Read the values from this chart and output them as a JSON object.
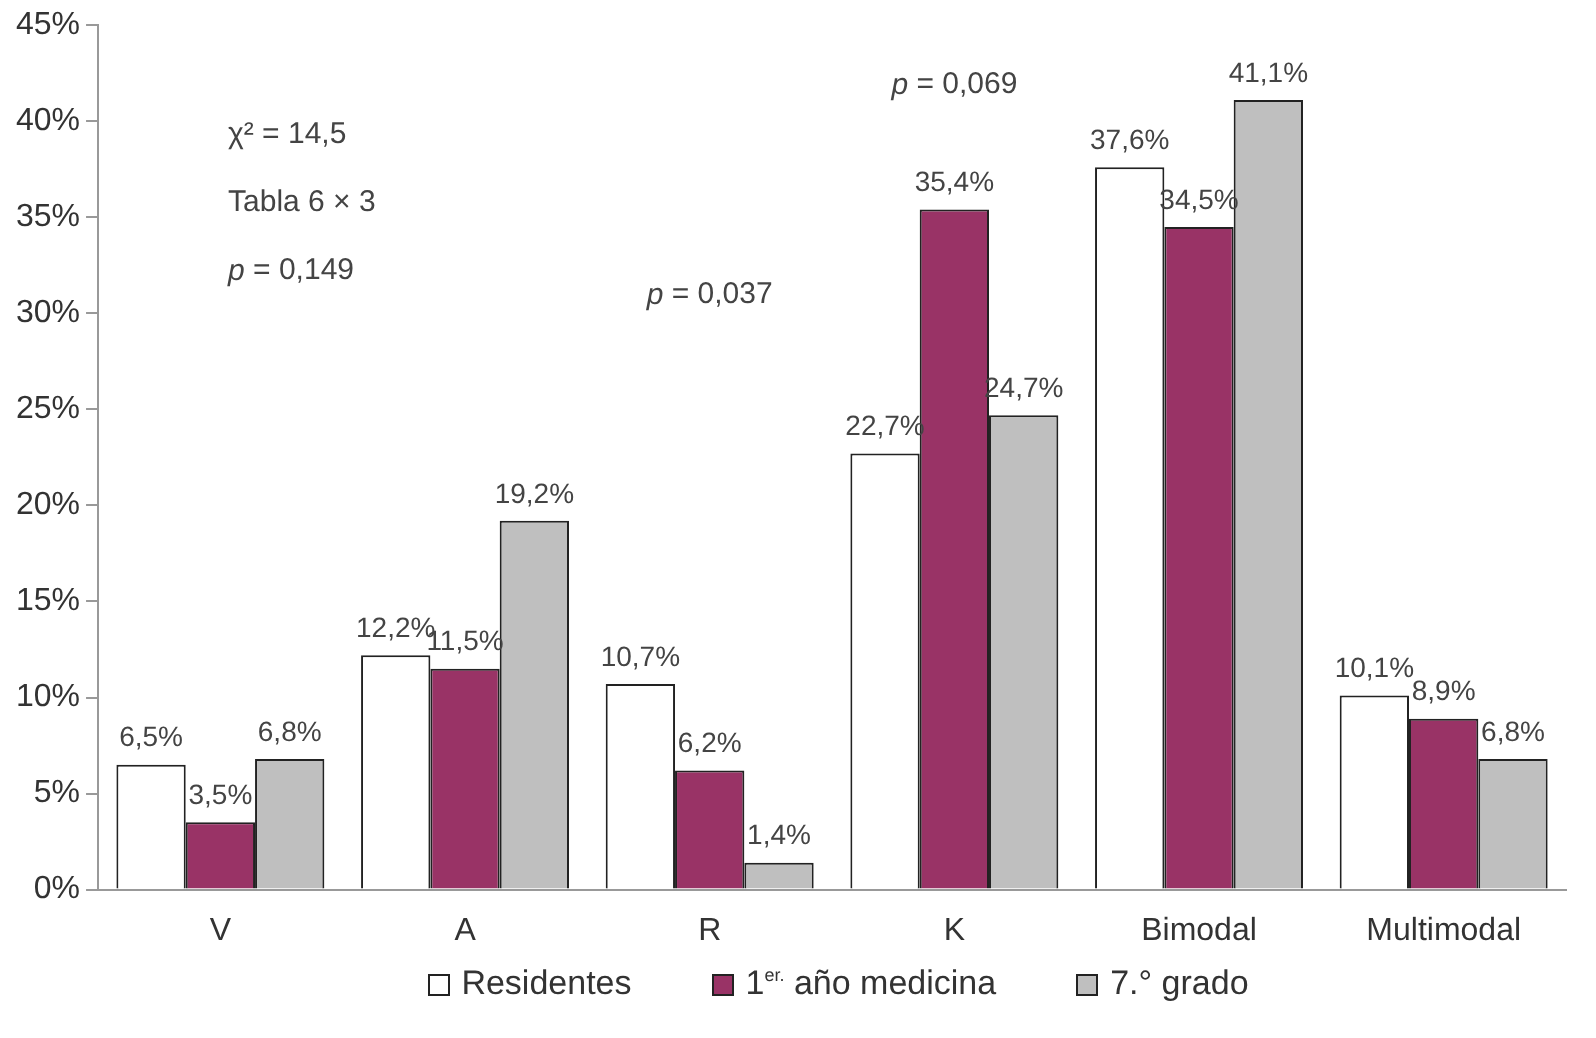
{
  "chart_data": {
    "type": "bar",
    "categories": [
      "V",
      "A",
      "R",
      "K",
      "Bimodal",
      "Multimodal"
    ],
    "series": [
      {
        "name": "Residentes",
        "color": "#ffffff",
        "values": [
          6.5,
          12.2,
          10.7,
          22.7,
          37.6,
          10.1
        ],
        "value_labels": [
          "6,5%",
          "12,2%",
          "10,7%",
          "22,7%",
          "37,6%",
          "10,1%"
        ]
      },
      {
        "name": "1$^{er.}$ año medicina",
        "color": "#993366",
        "values": [
          3.5,
          11.5,
          6.2,
          35.4,
          34.5,
          8.9
        ],
        "value_labels": [
          "3,5%",
          "11,5%",
          "6,2%",
          "35,4%",
          "34,5%",
          "8,9%"
        ]
      },
      {
        "name": "7.° grado",
        "color": "#bfbfbf",
        "values": [
          6.8,
          19.2,
          1.4,
          24.7,
          41.1,
          6.8
        ],
        "value_labels": [
          "6,8%",
          "19,2%",
          "1,4%",
          "24,7%",
          "41,1%",
          "6,8%"
        ]
      }
    ],
    "ylim": [
      0,
      45
    ],
    "yticks": [
      {
        "value": 0,
        "label": "0%"
      },
      {
        "value": 5,
        "label": "5%"
      },
      {
        "value": 10,
        "label": "10%"
      },
      {
        "value": 15,
        "label": "15%"
      },
      {
        "value": 20,
        "label": "20%"
      },
      {
        "value": 25,
        "label": "25%"
      },
      {
        "value": 30,
        "label": "30%"
      },
      {
        "value": 35,
        "label": "35%"
      },
      {
        "value": 40,
        "label": "40%"
      },
      {
        "value": 45,
        "label": "45%"
      }
    ],
    "grid": false,
    "legend": "bottom",
    "annotations": [
      "χ² = 14,5",
      "Tabla 6 × 3",
      "p = 0,149",
      "p = 0,037",
      "p = 0,069"
    ]
  }
}
